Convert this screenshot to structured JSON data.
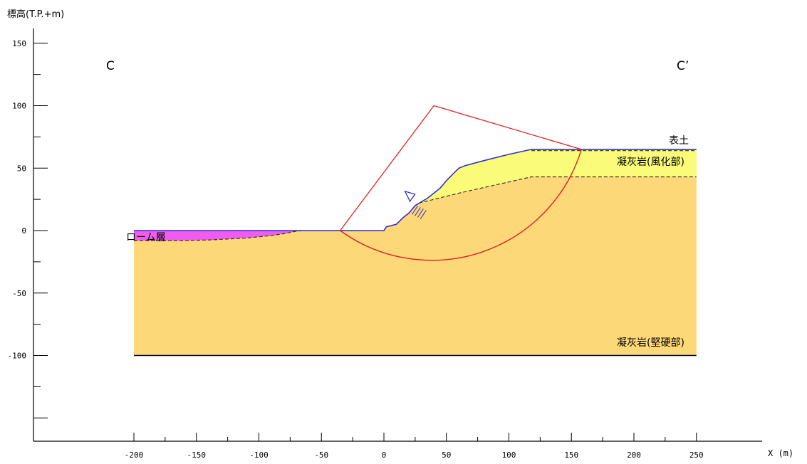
{
  "chart_data": {
    "type": "area",
    "title": "",
    "ylabel": "標高(T.P.+m)",
    "xlabel": "X (m)",
    "xlim": [
      -280,
      330
    ],
    "ylim": [
      -170,
      165
    ],
    "x_ticks": [
      -200,
      -150,
      -100,
      -50,
      0,
      50,
      100,
      150,
      200,
      250
    ],
    "y_ticks": [
      150,
      100,
      50,
      0,
      -50,
      -100
    ],
    "section_labels": {
      "left": "C",
      "right": "C’"
    },
    "layer_labels": {
      "topsoil": "表土",
      "weathered_tuff": "凝灰岩(風化部)",
      "loam": "ローム層",
      "hard_tuff": "凝灰岩(堅硬部)"
    },
    "colors": {
      "hard_tuff": "#fdd878",
      "weathered_tuff": "#fbfb7a",
      "loam": "#f05cf0",
      "surface_line": "#3030cc",
      "slip_circle": "#dd2222",
      "boundary": "#000000"
    },
    "model_bottom": -100,
    "model_x_range": [
      -200,
      250
    ],
    "ground_surface": [
      [
        -200,
        0
      ],
      [
        -70,
        0
      ],
      [
        -35,
        0
      ],
      [
        0,
        0
      ],
      [
        2,
        3
      ],
      [
        10,
        5
      ],
      [
        15,
        10
      ],
      [
        20,
        14
      ],
      [
        25,
        20
      ],
      [
        30,
        23
      ],
      [
        35,
        26
      ],
      [
        40,
        30
      ],
      [
        45,
        34
      ],
      [
        50,
        40
      ],
      [
        55,
        45
      ],
      [
        60,
        50
      ],
      [
        65,
        52
      ],
      [
        80,
        56
      ],
      [
        100,
        61
      ],
      [
        118,
        65
      ],
      [
        130,
        65
      ],
      [
        160,
        65
      ],
      [
        250,
        65
      ]
    ],
    "topsoil_base": [
      [
        118,
        64
      ],
      [
        160,
        64
      ],
      [
        250,
        64
      ]
    ],
    "weathered_base": [
      [
        28,
        22
      ],
      [
        60,
        30
      ],
      [
        118,
        43
      ],
      [
        250,
        43
      ]
    ],
    "loam_base": [
      [
        -200,
        -8
      ],
      [
        -160,
        -8
      ],
      [
        -140,
        -7.5
      ],
      [
        -130,
        -7
      ],
      [
        -110,
        -6
      ],
      [
        -100,
        -5
      ],
      [
        -90,
        -4
      ],
      [
        -80,
        -2.5
      ],
      [
        -70,
        -0.5
      ],
      [
        -65,
        0
      ]
    ],
    "slip_circle": {
      "center": [
        40,
        100
      ],
      "radius": 124,
      "entry": [
        -35,
        0
      ],
      "exit": [
        158,
        65
      ],
      "lowest_point": [
        40,
        -24
      ]
    },
    "water_level": [
      22,
      28
    ],
    "hatch_location": [
      27,
      14
    ]
  }
}
